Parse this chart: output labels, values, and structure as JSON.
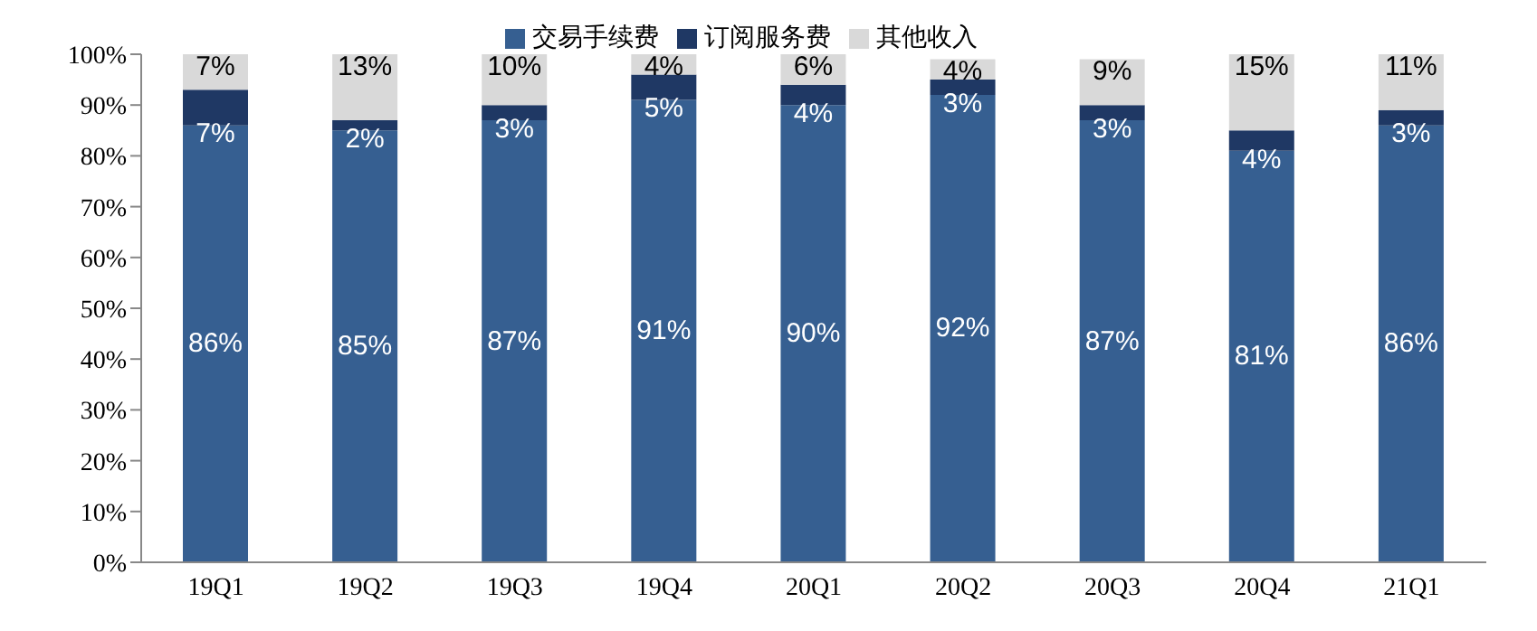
{
  "chart_data": {
    "type": "bar",
    "stacked": true,
    "categories": [
      "19Q1",
      "19Q2",
      "19Q3",
      "19Q4",
      "20Q1",
      "20Q2",
      "20Q3",
      "20Q4",
      "21Q1"
    ],
    "series": [
      {
        "name": "交易手续费",
        "color": "#365f91",
        "values": [
          86,
          85,
          87,
          91,
          90,
          92,
          87,
          81,
          86
        ],
        "value_labels": [
          "86%",
          "85%",
          "87%",
          "91%",
          "90%",
          "92%",
          "87%",
          "81%",
          "86%"
        ]
      },
      {
        "name": "订阅服务费",
        "color": "#1f3864",
        "values": [
          7,
          2,
          3,
          5,
          4,
          3,
          3,
          4,
          3
        ],
        "value_labels": [
          "7%",
          "2%",
          "3%",
          "5%",
          "4%",
          "3%",
          "3%",
          "4%",
          "3%"
        ]
      },
      {
        "name": "其他收入",
        "color": "#d9d9d9",
        "values": [
          7,
          13,
          10,
          4,
          6,
          4,
          9,
          15,
          11
        ],
        "value_labels": [
          "7%",
          "13%",
          "10%",
          "4%",
          "6%",
          "4%",
          "9%",
          "15%",
          "11%"
        ]
      }
    ],
    "ylim": [
      0,
      100
    ],
    "yticks": [
      {
        "value": 0,
        "label": "0%"
      },
      {
        "value": 10,
        "label": "10%"
      },
      {
        "value": 20,
        "label": "20%"
      },
      {
        "value": 30,
        "label": "30%"
      },
      {
        "value": 40,
        "label": "40%"
      },
      {
        "value": 50,
        "label": "50%"
      },
      {
        "value": 60,
        "label": "60%"
      },
      {
        "value": 70,
        "label": "70%"
      },
      {
        "value": 80,
        "label": "80%"
      },
      {
        "value": 90,
        "label": "90%"
      },
      {
        "value": 100,
        "label": "100%"
      }
    ],
    "grid": false,
    "legend": "top"
  }
}
